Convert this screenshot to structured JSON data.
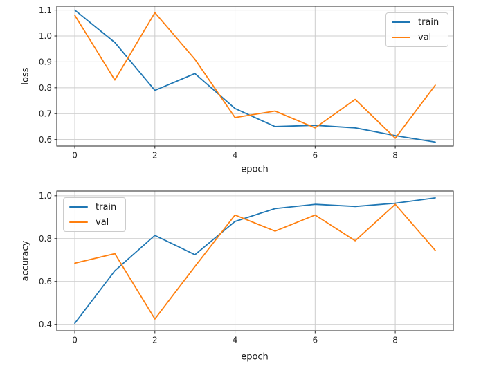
{
  "colors": {
    "train_line": "#1f77b4",
    "val_line": "#ff7f0e",
    "grid": "#cccccc",
    "spine": "#262626",
    "tick_text": "#262626",
    "background": "#ffffff",
    "legend_border": "#cccccc"
  },
  "legend": {
    "train_label": "train",
    "val_label": "val"
  },
  "chart_data": [
    {
      "type": "line",
      "title": "",
      "xlabel": "epoch",
      "ylabel": "loss",
      "x": [
        0,
        1,
        2,
        3,
        4,
        5,
        6,
        7,
        8,
        9
      ],
      "series": [
        {
          "name": "train",
          "color": "#1f77b4",
          "values": [
            1.1,
            0.975,
            0.79,
            0.855,
            0.72,
            0.65,
            0.655,
            0.645,
            0.615,
            0.59
          ]
        },
        {
          "name": "val",
          "color": "#ff7f0e",
          "values": [
            1.08,
            0.83,
            1.09,
            0.91,
            0.685,
            0.71,
            0.645,
            0.755,
            0.605,
            0.81
          ]
        }
      ],
      "xlim": [
        -0.45,
        9.45
      ],
      "ylim": [
        0.575,
        1.115
      ],
      "xticks": [
        0,
        2,
        4,
        6,
        8
      ],
      "yticks": [
        0.6,
        0.7,
        0.8,
        0.9,
        1.0,
        1.1
      ],
      "grid": true,
      "legend_position": "upper-right"
    },
    {
      "type": "line",
      "title": "",
      "xlabel": "epoch",
      "ylabel": "accuracy",
      "x": [
        0,
        1,
        2,
        3,
        4,
        5,
        6,
        7,
        8,
        9
      ],
      "series": [
        {
          "name": "train",
          "color": "#1f77b4",
          "values": [
            0.405,
            0.65,
            0.815,
            0.725,
            0.88,
            0.94,
            0.96,
            0.95,
            0.965,
            0.99
          ]
        },
        {
          "name": "val",
          "color": "#ff7f0e",
          "values": [
            0.685,
            0.73,
            0.425,
            0.67,
            0.91,
            0.835,
            0.91,
            0.79,
            0.96,
            0.745
          ]
        }
      ],
      "xlim": [
        -0.45,
        9.45
      ],
      "ylim": [
        0.37,
        1.022
      ],
      "xticks": [
        0,
        2,
        4,
        6,
        8
      ],
      "yticks": [
        0.4,
        0.6,
        0.8,
        1.0
      ],
      "grid": true,
      "legend_position": "upper-left"
    }
  ]
}
